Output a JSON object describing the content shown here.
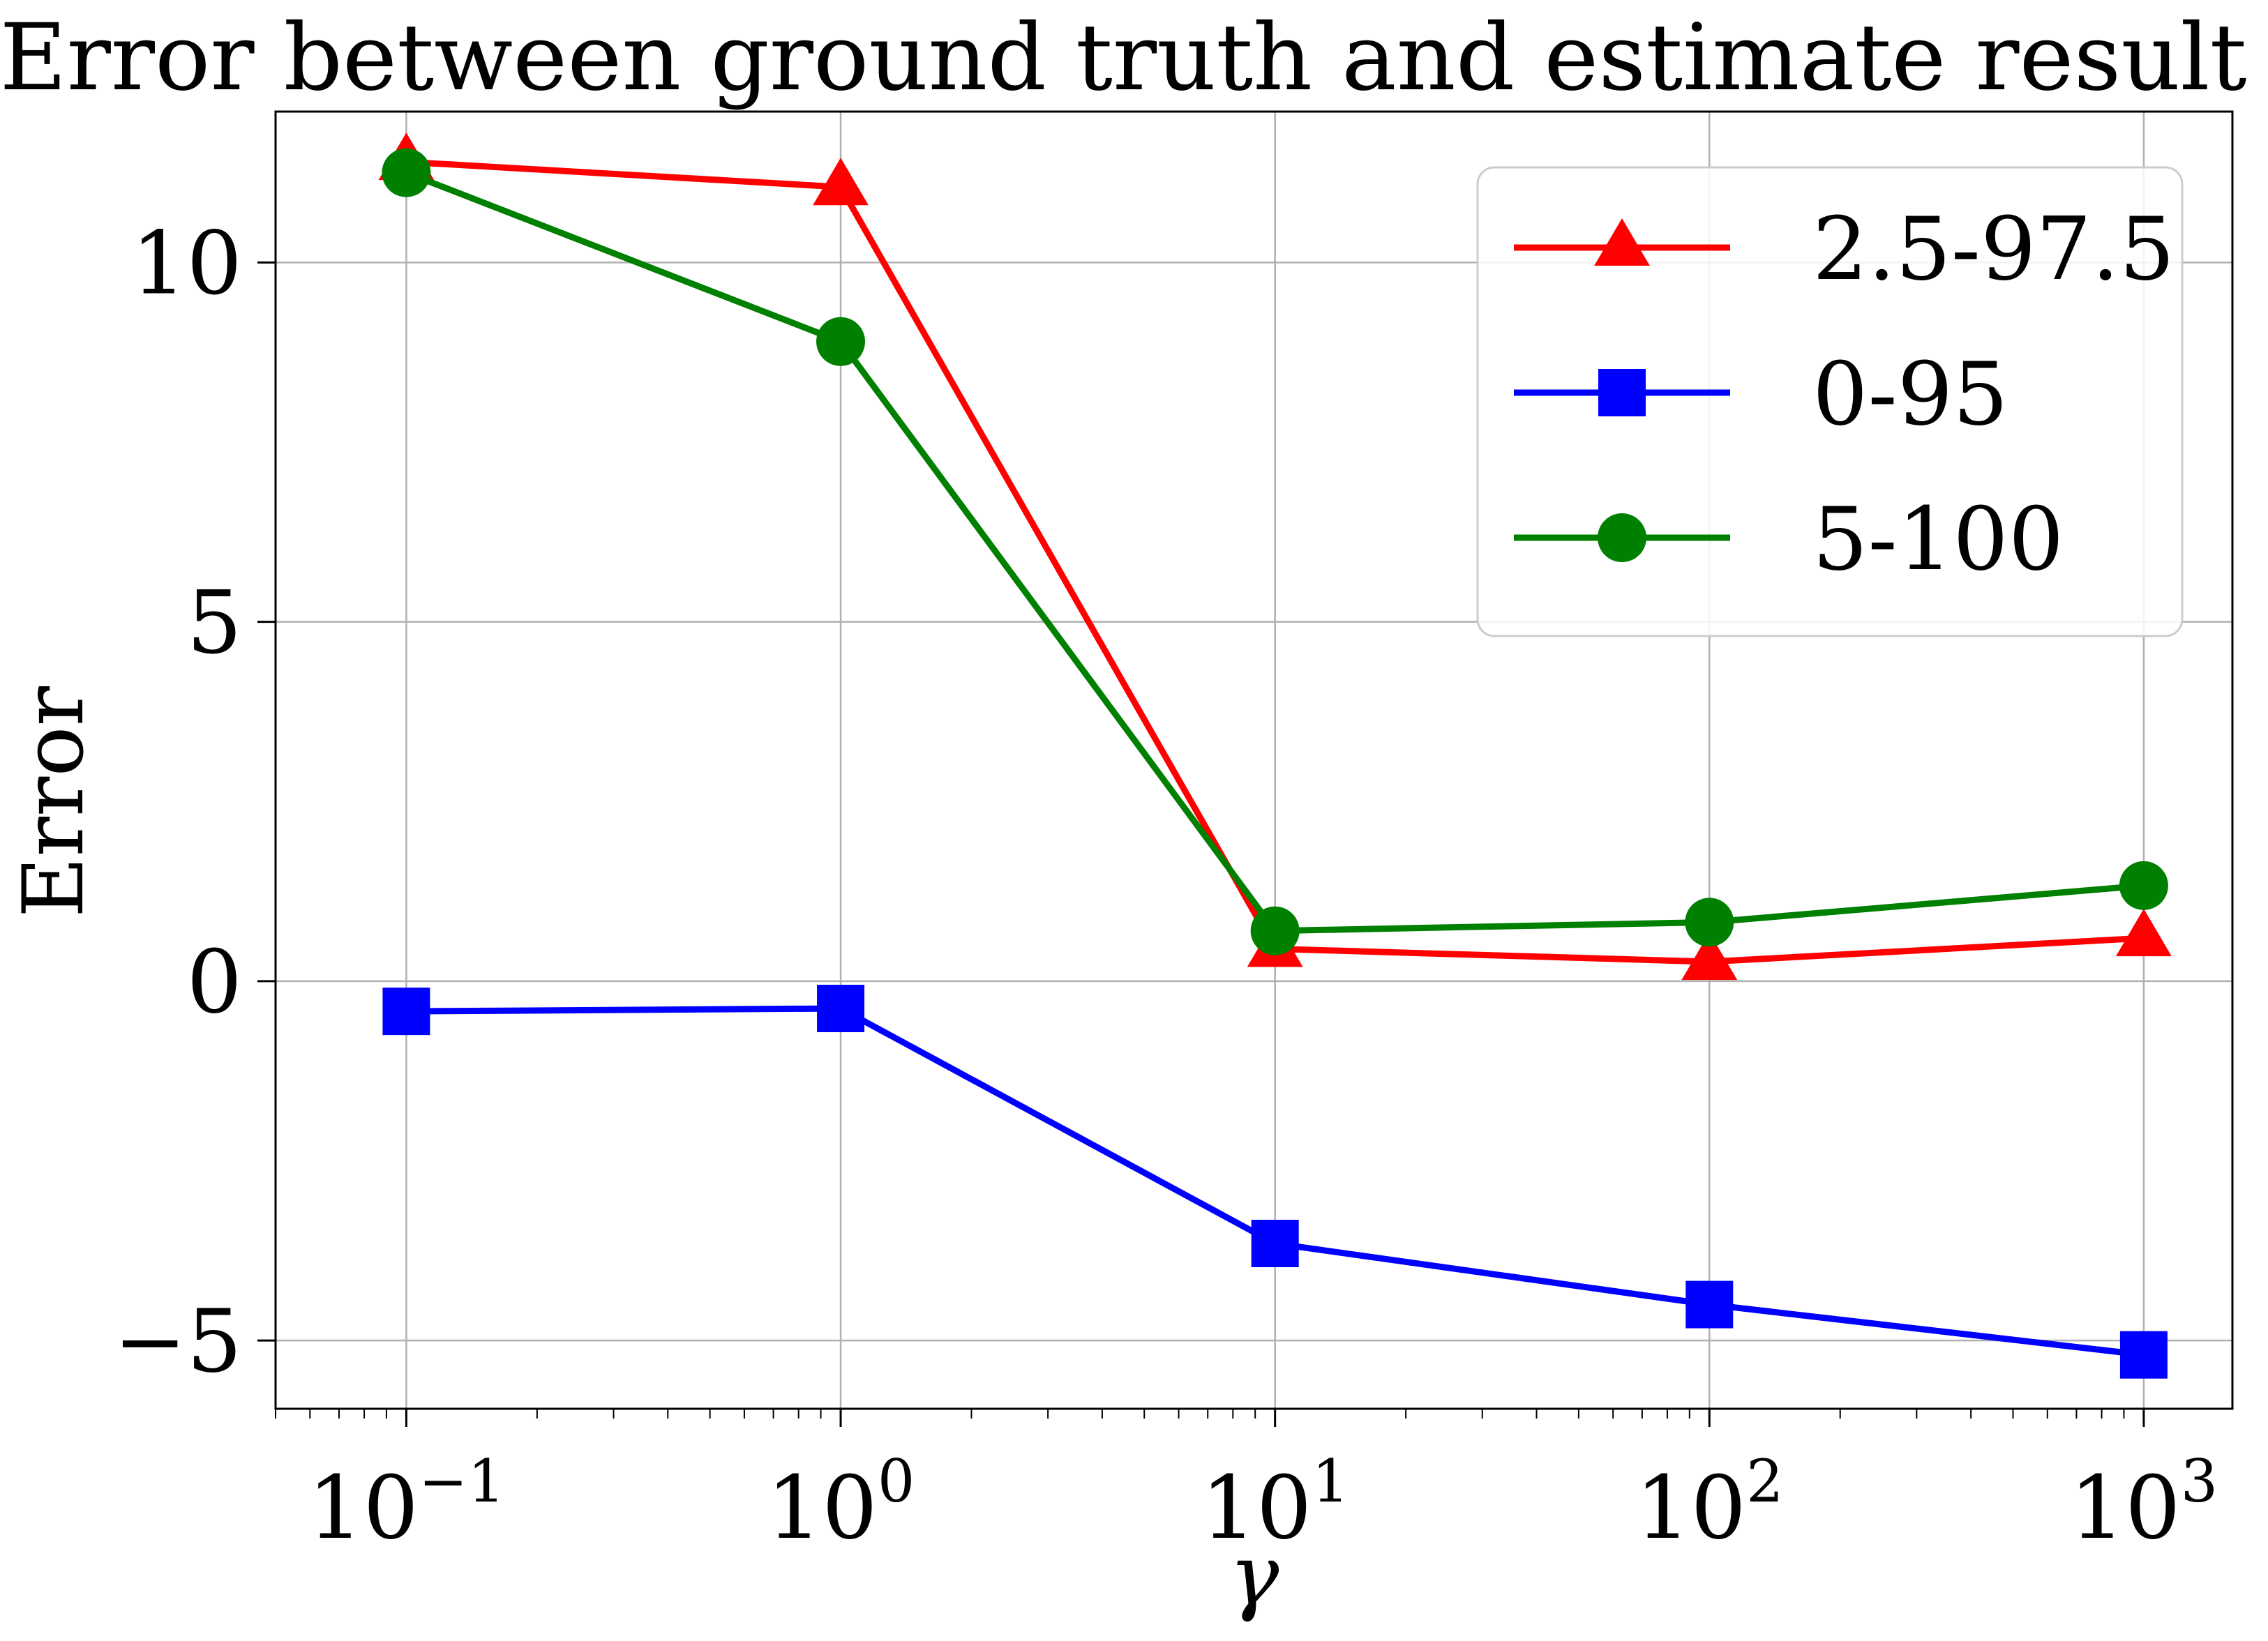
{
  "chart_data": {
    "type": "line",
    "title": "Error between ground truth and estimate result",
    "xlabel": "γ",
    "ylabel": "Error",
    "x_scale": "log",
    "x": [
      0.1,
      1,
      10,
      100,
      1000
    ],
    "x_tick_labels": [
      {
        "base": "10",
        "exp": "−1"
      },
      {
        "base": "10",
        "exp": "0"
      },
      {
        "base": "10",
        "exp": "1"
      },
      {
        "base": "10",
        "exp": "2"
      },
      {
        "base": "10",
        "exp": "3"
      }
    ],
    "xlim": [
      0.05,
      1600
    ],
    "ylim": [
      -5.95,
      12.1
    ],
    "y_ticks": [
      -5,
      0,
      5,
      10
    ],
    "y_tick_labels": [
      "−5",
      "0",
      "5",
      "10"
    ],
    "grid": true,
    "legend_position": "top-right",
    "series": [
      {
        "name": "2.5-97.5",
        "color": "#ff0000",
        "marker": "triangle",
        "values": [
          11.4,
          11.05,
          0.45,
          0.27,
          0.6
        ]
      },
      {
        "name": "0-95",
        "color": "#0000ff",
        "marker": "square",
        "values": [
          -0.42,
          -0.38,
          -3.65,
          -4.5,
          -5.2
        ]
      },
      {
        "name": "5-100",
        "color": "#008000",
        "marker": "circle",
        "values": [
          11.25,
          8.9,
          0.7,
          0.82,
          1.33
        ]
      }
    ]
  }
}
